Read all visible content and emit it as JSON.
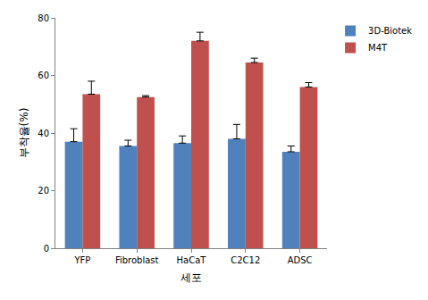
{
  "chart_data": {
    "type": "bar",
    "x_label": "세포",
    "y_label": "부착율(%)",
    "categories": [
      "YFP",
      "Fibroblast",
      "HaCaT",
      "C2C12",
      "ADSC"
    ],
    "series": [
      {
        "name": "3D-Biotek",
        "color": "#4f81bd",
        "values": [
          37,
          35.5,
          36.5,
          38,
          33.5
        ],
        "errors": [
          4.5,
          2,
          2.5,
          5,
          2
        ]
      },
      {
        "name": "M4T",
        "color": "#c0504d",
        "values": [
          53.5,
          52.5,
          72,
          64.5,
          56
        ],
        "errors": [
          4.5,
          0.5,
          3,
          1.5,
          1.5
        ]
      }
    ],
    "ylim": [
      0,
      80
    ],
    "yticks": [
      0,
      20,
      40,
      60,
      80
    ],
    "grid": false,
    "legend": "upper right"
  }
}
